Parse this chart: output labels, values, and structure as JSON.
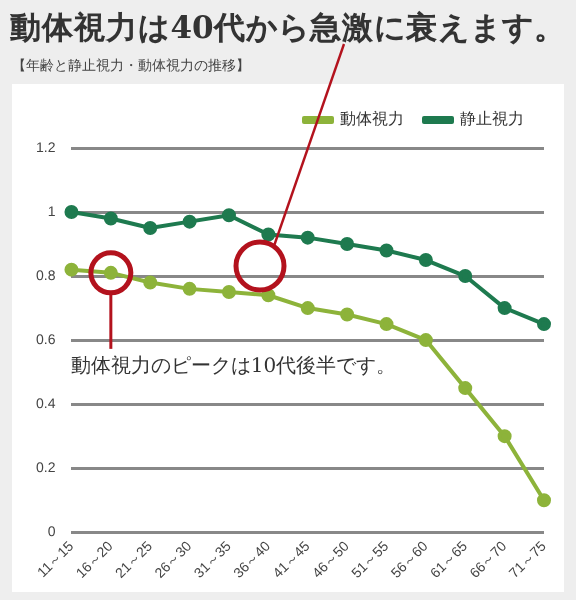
{
  "chart_data": {
    "type": "line",
    "title": "動体視力は40代から急激に衰えます。",
    "subtitle": "【年齢と静止視力・動体視力の推移】",
    "categories": [
      "11～15",
      "16～20",
      "21～25",
      "26～30",
      "31～35",
      "36～40",
      "41～45",
      "46～50",
      "51～55",
      "56～60",
      "61～65",
      "66～70",
      "71～75"
    ],
    "series": [
      {
        "name": "動体視力",
        "color": "#8db33a",
        "values": [
          0.82,
          0.81,
          0.78,
          0.76,
          0.75,
          0.74,
          0.7,
          0.68,
          0.65,
          0.6,
          0.45,
          0.3,
          0.1
        ]
      },
      {
        "name": "静止視力",
        "color": "#1e7a4f",
        "values": [
          1.0,
          0.98,
          0.95,
          0.97,
          0.99,
          0.93,
          0.92,
          0.9,
          0.88,
          0.85,
          0.8,
          0.7,
          0.65
        ]
      }
    ],
    "ylim": [
      0,
      1.2
    ],
    "yticks": [
      0,
      0.2,
      0.4,
      0.6,
      0.8,
      1,
      1.2
    ],
    "grid": "y",
    "legend": "top right",
    "marker": "circle",
    "line_style": "solid",
    "annotations": [
      "動体視力のピークは10代後半です。"
    ]
  }
}
